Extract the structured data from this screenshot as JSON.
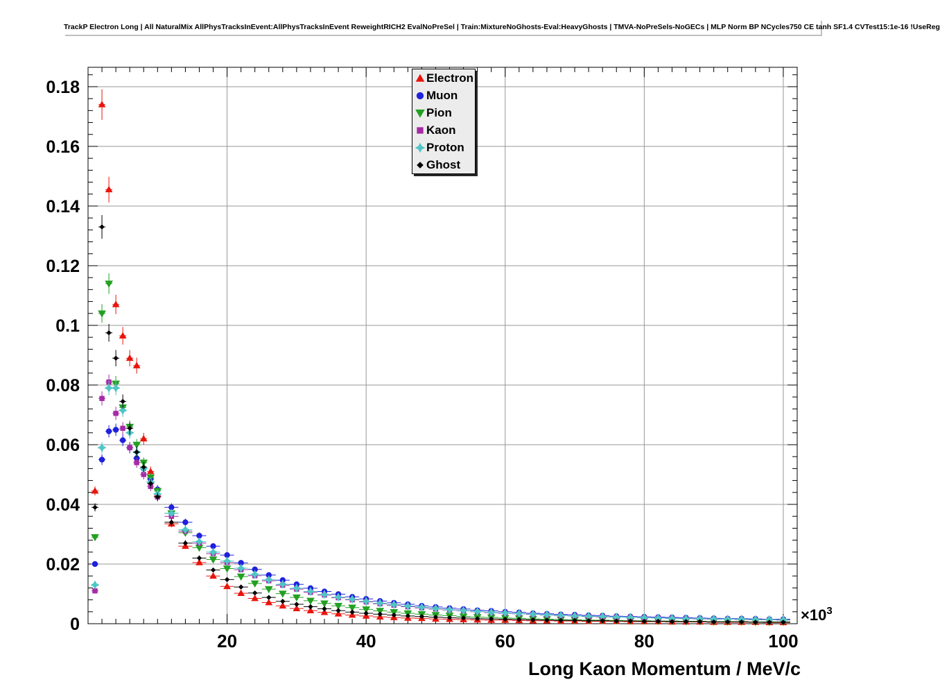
{
  "title": {
    "text": "TrackP Electron Long | All NaturalMix AllPhysTracksInEvent:AllPhysTracksInEvent ReweightRICH2 EvalNoPreSel | Train:MixtureNoGhosts-Eval:HeavyGhosts | TMVA-NoPreSels-NoGECs | MLP Norm BP NCycles750 CE tanh SF1.4 CVTest15:1e-16 !UseReg"
  },
  "chart_data": {
    "type": "scatter",
    "xlabel": "Long Kaon Momentum / MeV/c",
    "x_unit": {
      "text": "×10",
      "exp": "3"
    },
    "xlim": [
      0,
      102
    ],
    "ylim": [
      0,
      0.1865
    ],
    "grid": true,
    "x_ticks": [
      20,
      40,
      60,
      80,
      100
    ],
    "y_ticks": [
      0,
      0.02,
      0.04,
      0.06,
      0.08,
      0.1,
      0.12,
      0.14,
      0.16,
      0.18
    ],
    "y_tick_labels": [
      "0",
      "0.02",
      "0.04",
      "0.06",
      "0.08",
      "0.1",
      "0.12",
      "0.14",
      "0.16",
      "0.18"
    ],
    "legend": {
      "position": "top-center"
    },
    "x": [
      1,
      2,
      3,
      4,
      5,
      6,
      7,
      8,
      9,
      10,
      12,
      14,
      16,
      18,
      20,
      22,
      24,
      26,
      28,
      30,
      32,
      34,
      36,
      38,
      40,
      42,
      44,
      46,
      48,
      50,
      52,
      54,
      56,
      58,
      60,
      62,
      64,
      66,
      68,
      70,
      72,
      74,
      76,
      78,
      80,
      82,
      84,
      86,
      88,
      90,
      92,
      94,
      96,
      98,
      100
    ],
    "series": [
      {
        "name": "Electron",
        "color": "#e8150c",
        "marker": "triangle-up",
        "marker_size": 4.5,
        "values": [
          0.0445,
          0.174,
          0.1455,
          0.107,
          0.0965,
          0.089,
          0.0865,
          0.062,
          0.051,
          0.0435,
          0.0335,
          0.026,
          0.0205,
          0.016,
          0.0125,
          0.0102,
          0.0085,
          0.0071,
          0.006,
          0.0051,
          0.0044,
          0.0038,
          0.0033,
          0.0029,
          0.0026,
          0.0023,
          0.0021,
          0.0019,
          0.0018,
          0.0016,
          0.0015,
          0.0014,
          0.0013,
          0.0012,
          0.0012,
          0.0011,
          0.001,
          0.001,
          0.0009,
          0.0009,
          0.0008,
          0.0008,
          0.0008,
          0.0007,
          0.0007,
          0.0007,
          0.0006,
          0.0006,
          0.0006,
          0.0005,
          0.0005,
          0.0005,
          0.0005,
          0.0004,
          0.0004
        ]
      },
      {
        "name": "Muon",
        "color": "#2020dd",
        "marker": "circle",
        "marker_size": 4.5,
        "values": [
          0.02,
          0.055,
          0.0645,
          0.065,
          0.0615,
          0.059,
          0.0555,
          0.052,
          0.0485,
          0.045,
          0.039,
          0.034,
          0.0295,
          0.026,
          0.023,
          0.0204,
          0.0182,
          0.0163,
          0.0146,
          0.0132,
          0.0119,
          0.0108,
          0.0099,
          0.009,
          0.0083,
          0.0076,
          0.007,
          0.0065,
          0.006,
          0.0056,
          0.0052,
          0.0049,
          0.0045,
          0.0043,
          0.004,
          0.0038,
          0.0035,
          0.0033,
          0.0031,
          0.003,
          0.0028,
          0.0027,
          0.0025,
          0.0024,
          0.0023,
          0.0022,
          0.0021,
          0.002,
          0.0019,
          0.0018,
          0.0017,
          0.0017,
          0.0016,
          0.0015,
          0.0015
        ]
      },
      {
        "name": "Pion",
        "color": "#23a023",
        "marker": "triangle-down",
        "marker_size": 5,
        "values": [
          0.029,
          0.104,
          0.114,
          0.0805,
          0.0725,
          0.066,
          0.06,
          0.054,
          0.049,
          0.0445,
          0.037,
          0.0305,
          0.0255,
          0.0215,
          0.0185,
          0.0158,
          0.0135,
          0.0116,
          0.0101,
          0.0088,
          0.0077,
          0.0068,
          0.006,
          0.0054,
          0.0048,
          0.0043,
          0.0039,
          0.0035,
          0.0032,
          0.0029,
          0.0027,
          0.0024,
          0.0022,
          0.0021,
          0.0019,
          0.0018,
          0.0016,
          0.0015,
          0.0014,
          0.0013,
          0.0012,
          0.0012,
          0.0011,
          0.001,
          0.001,
          0.0009,
          0.0009,
          0.0008,
          0.0008,
          0.0007,
          0.0007,
          0.0007,
          0.0006,
          0.0006,
          0.0006
        ]
      },
      {
        "name": "Kaon",
        "color": "#a62aa6",
        "marker": "square",
        "marker_size": 4,
        "values": [
          0.011,
          0.0755,
          0.081,
          0.0705,
          0.0655,
          0.059,
          0.054,
          0.05,
          0.046,
          0.0425,
          0.036,
          0.031,
          0.027,
          0.0235,
          0.0205,
          0.0181,
          0.0161,
          0.0144,
          0.0129,
          0.0116,
          0.0105,
          0.0096,
          0.0087,
          0.008,
          0.0073,
          0.0067,
          0.0062,
          0.0057,
          0.0053,
          0.0049,
          0.0046,
          0.0043,
          0.004,
          0.0037,
          0.0035,
          0.0033,
          0.0031,
          0.0029,
          0.0027,
          0.0026,
          0.0024,
          0.0023,
          0.0022,
          0.0021,
          0.002,
          0.0019,
          0.0018,
          0.0017,
          0.0016,
          0.0015,
          0.0015,
          0.0014,
          0.0013,
          0.0013,
          0.0012
        ]
      },
      {
        "name": "Proton",
        "color": "#4fc6c6",
        "marker": "star",
        "marker_size": 5.5,
        "values": [
          0.013,
          0.059,
          0.079,
          0.079,
          0.0715,
          0.064,
          0.0575,
          0.052,
          0.0475,
          0.0435,
          0.037,
          0.0315,
          0.0275,
          0.024,
          0.021,
          0.0186,
          0.0165,
          0.0147,
          0.0132,
          0.0119,
          0.0108,
          0.0098,
          0.0089,
          0.0082,
          0.0075,
          0.0069,
          0.0064,
          0.0059,
          0.0055,
          0.0051,
          0.0047,
          0.0044,
          0.0041,
          0.0038,
          0.0036,
          0.0034,
          0.0032,
          0.003,
          0.0028,
          0.0026,
          0.0025,
          0.0024,
          0.0022,
          0.0021,
          0.002,
          0.0019,
          0.0018,
          0.0017,
          0.0017,
          0.0016,
          0.0015,
          0.0015,
          0.0014,
          0.0014,
          0.0013
        ]
      },
      {
        "name": "Ghost",
        "color": "#000000",
        "marker": "diamond",
        "marker_size": 3,
        "values": [
          0.039,
          0.133,
          0.0975,
          0.089,
          0.0745,
          0.0655,
          0.0575,
          0.0525,
          0.047,
          0.0425,
          0.034,
          0.027,
          0.022,
          0.018,
          0.0148,
          0.0123,
          0.0103,
          0.0088,
          0.0075,
          0.0065,
          0.0057,
          0.005,
          0.0044,
          0.0039,
          0.0035,
          0.0032,
          0.0029,
          0.0026,
          0.0024,
          0.0022,
          0.002,
          0.0019,
          0.0017,
          0.0016,
          0.0015,
          0.0014,
          0.0013,
          0.0012,
          0.0011,
          0.0011,
          0.001,
          0.001,
          0.0009,
          0.0009,
          0.0008,
          0.0008,
          0.0007,
          0.0007,
          0.0007,
          0.0006,
          0.0006,
          0.0006,
          0.0005,
          0.0005,
          0.0005
        ]
      }
    ]
  }
}
